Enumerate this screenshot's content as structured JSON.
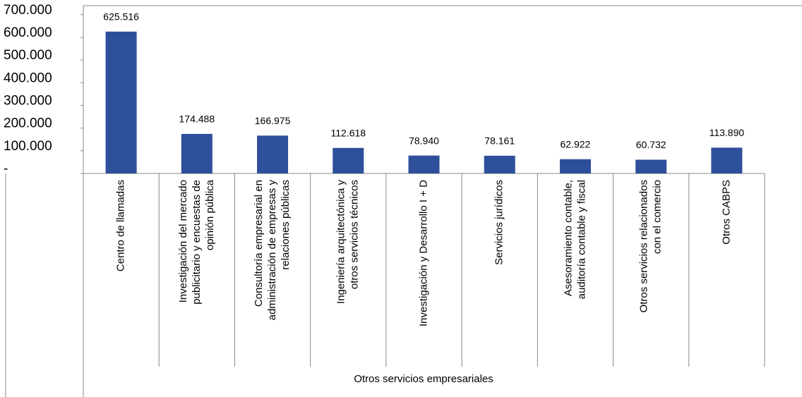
{
  "chart_data": {
    "type": "bar",
    "categories": [
      [
        "Centro de llamadas"
      ],
      [
        "Investigación del mercado",
        "publicitario y encuestas de",
        "opinión  pública"
      ],
      [
        "Consultoría empresarial en",
        "administración de empresas y",
        "relaciones  públicas"
      ],
      [
        "Ingeniería arquitectónica y",
        "otros servicios técnicos"
      ],
      [
        "Investigación y Desarrollo I + D"
      ],
      [
        "Servicios jurídicos"
      ],
      [
        "Asesoramiento contable,",
        "auditoría contable y fiscal"
      ],
      [
        "Otros servicios relacionados",
        "con el comercio"
      ],
      [
        "Otros CABPS"
      ]
    ],
    "values": [
      625516,
      174488,
      166975,
      112618,
      78940,
      78161,
      62922,
      60732,
      113890
    ],
    "value_labels": [
      "625.516",
      "174.488",
      "166.975",
      "112.618",
      "78.940",
      "78.161",
      "62.922",
      "60.732",
      "113.890"
    ],
    "color": "#2e4f9a",
    "group_label": "Otros servicios empresariales",
    "ylim": [
      0,
      740000
    ],
    "yticks": [
      {
        "value": 0,
        "label": "-"
      },
      {
        "value": 100000,
        "label": "100.000"
      },
      {
        "value": 200000,
        "label": "200.000"
      },
      {
        "value": 300000,
        "label": "300.000"
      },
      {
        "value": 400000,
        "label": "400.000"
      },
      {
        "value": 500000,
        "label": "500.000"
      },
      {
        "value": 600000,
        "label": "600.000"
      },
      {
        "value": 700000,
        "label": "700.000"
      }
    ],
    "grid": false
  }
}
